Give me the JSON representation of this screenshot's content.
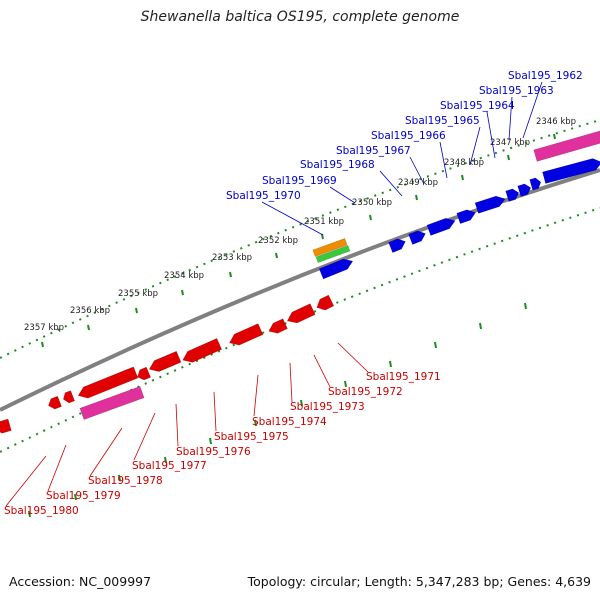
{
  "title": "Shewanella baltica OS195, complete genome",
  "footer": {
    "accession": "Accession: NC_009997",
    "summary": "Topology: circular; Length: 5,347,283 bp; Genes: 4,639"
  },
  "colors": {
    "forward_gene": "#0000e0",
    "reverse_gene": "#e00000",
    "forward_label": "#0000cc",
    "reverse_label": "#cc0000",
    "backbone": "#808080",
    "tick": "#1e8c1e",
    "pink_feature": "#e0309c",
    "orange_feature": "#f08c00",
    "green_feature": "#3cc83c"
  },
  "ticks": [
    "2346 kbp",
    "2347 kbp",
    "2348 kbp",
    "2349 kbp",
    "2350 kbp",
    "2351 kbp",
    "2352 kbp",
    "2353 kbp",
    "2354 kbp",
    "2355 kbp",
    "2356 kbp",
    "2357 kbp"
  ],
  "forward_genes": [
    "Sbal195_1962",
    "Sbal195_1963",
    "Sbal195_1964",
    "Sbal195_1965",
    "Sbal195_1966",
    "Sbal195_1967",
    "Sbal195_1968",
    "Sbal195_1969",
    "Sbal195_1970"
  ],
  "reverse_genes": [
    "Sbal195_1971",
    "Sbal195_1972",
    "Sbal195_1973",
    "Sbal195_1974",
    "Sbal195_1975",
    "Sbal195_1976",
    "Sbal195_1977",
    "Sbal195_1978",
    "Sbal195_1979",
    "Sbal195_1980"
  ]
}
